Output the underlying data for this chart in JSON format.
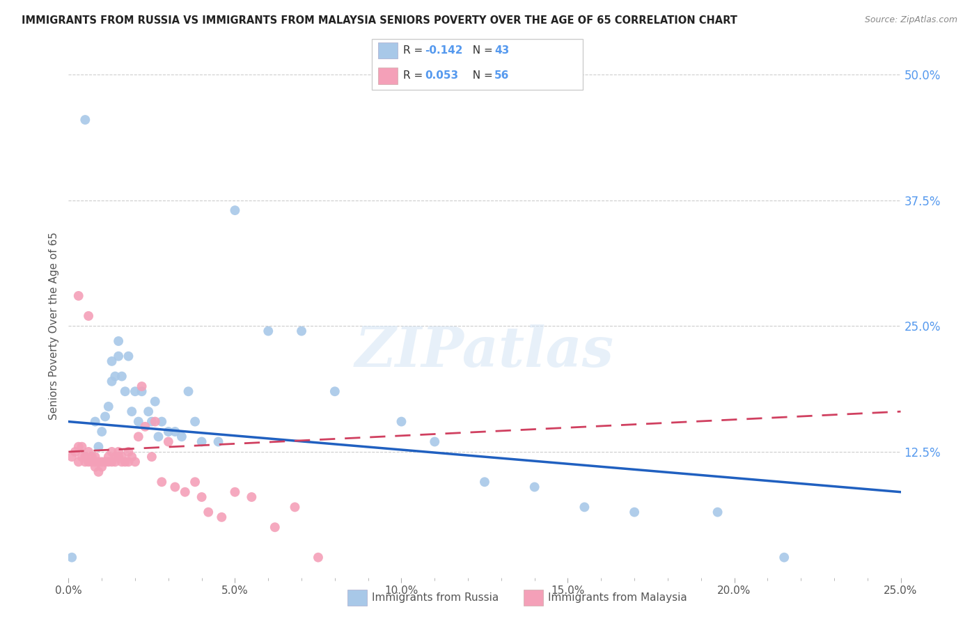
{
  "title": "IMMIGRANTS FROM RUSSIA VS IMMIGRANTS FROM MALAYSIA SENIORS POVERTY OVER THE AGE OF 65 CORRELATION CHART",
  "source": "Source: ZipAtlas.com",
  "ylabel": "Seniors Poverty Over the Age of 65",
  "legend_bottom": [
    "Immigrants from Russia",
    "Immigrants from Malaysia"
  ],
  "russia_R": -0.142,
  "russia_N": 43,
  "malaysia_R": 0.053,
  "malaysia_N": 56,
  "xlim": [
    0.0,
    0.25
  ],
  "ylim": [
    0.0,
    0.5
  ],
  "xtick_labels": [
    "0.0%",
    "",
    "",
    "",
    "",
    "5.0%",
    "",
    "",
    "",
    "",
    "10.0%",
    "",
    "",
    "",
    "",
    "15.0%",
    "",
    "",
    "",
    "",
    "20.0%",
    "",
    "",
    "",
    "",
    "25.0%"
  ],
  "xtick_values": [
    0.0,
    0.01,
    0.02,
    0.03,
    0.04,
    0.05,
    0.06,
    0.07,
    0.08,
    0.09,
    0.1,
    0.11,
    0.12,
    0.13,
    0.14,
    0.15,
    0.16,
    0.17,
    0.18,
    0.19,
    0.2,
    0.21,
    0.22,
    0.23,
    0.24,
    0.25
  ],
  "ytick_labels": [
    "12.5%",
    "25.0%",
    "37.5%",
    "50.0%"
  ],
  "ytick_values": [
    0.125,
    0.25,
    0.375,
    0.5
  ],
  "russia_color": "#a8c8e8",
  "malaysia_color": "#f4a0b8",
  "russia_line_color": "#2060c0",
  "malaysia_line_color": "#d04060",
  "background_color": "#ffffff",
  "watermark": "ZIPatlas",
  "russia_x": [
    0.005,
    0.008,
    0.009,
    0.01,
    0.011,
    0.012,
    0.013,
    0.013,
    0.014,
    0.015,
    0.015,
    0.016,
    0.017,
    0.018,
    0.019,
    0.02,
    0.021,
    0.022,
    0.024,
    0.025,
    0.026,
    0.027,
    0.028,
    0.03,
    0.032,
    0.034,
    0.036,
    0.038,
    0.04,
    0.045,
    0.05,
    0.06,
    0.07,
    0.08,
    0.1,
    0.11,
    0.125,
    0.14,
    0.155,
    0.17,
    0.195,
    0.215,
    0.001
  ],
  "russia_y": [
    0.455,
    0.155,
    0.13,
    0.145,
    0.16,
    0.17,
    0.195,
    0.215,
    0.2,
    0.22,
    0.235,
    0.2,
    0.185,
    0.22,
    0.165,
    0.185,
    0.155,
    0.185,
    0.165,
    0.155,
    0.175,
    0.14,
    0.155,
    0.145,
    0.145,
    0.14,
    0.185,
    0.155,
    0.135,
    0.135,
    0.365,
    0.245,
    0.245,
    0.185,
    0.155,
    0.135,
    0.095,
    0.09,
    0.07,
    0.065,
    0.065,
    0.02,
    0.02
  ],
  "malaysia_x": [
    0.001,
    0.002,
    0.003,
    0.003,
    0.004,
    0.004,
    0.005,
    0.005,
    0.006,
    0.006,
    0.007,
    0.007,
    0.008,
    0.008,
    0.008,
    0.009,
    0.009,
    0.01,
    0.01,
    0.011,
    0.011,
    0.012,
    0.012,
    0.013,
    0.013,
    0.014,
    0.014,
    0.015,
    0.015,
    0.016,
    0.016,
    0.017,
    0.018,
    0.018,
    0.019,
    0.02,
    0.021,
    0.022,
    0.023,
    0.025,
    0.026,
    0.028,
    0.03,
    0.032,
    0.035,
    0.038,
    0.04,
    0.042,
    0.046,
    0.05,
    0.055,
    0.062,
    0.068,
    0.075,
    0.003,
    0.006
  ],
  "malaysia_y": [
    0.12,
    0.125,
    0.13,
    0.115,
    0.13,
    0.12,
    0.115,
    0.12,
    0.125,
    0.115,
    0.12,
    0.115,
    0.115,
    0.11,
    0.12,
    0.105,
    0.115,
    0.115,
    0.11,
    0.115,
    0.115,
    0.12,
    0.115,
    0.125,
    0.115,
    0.115,
    0.12,
    0.12,
    0.125,
    0.115,
    0.12,
    0.115,
    0.115,
    0.125,
    0.12,
    0.115,
    0.14,
    0.19,
    0.15,
    0.12,
    0.155,
    0.095,
    0.135,
    0.09,
    0.085,
    0.095,
    0.08,
    0.065,
    0.06,
    0.085,
    0.08,
    0.05,
    0.07,
    0.02,
    0.28,
    0.26
  ]
}
